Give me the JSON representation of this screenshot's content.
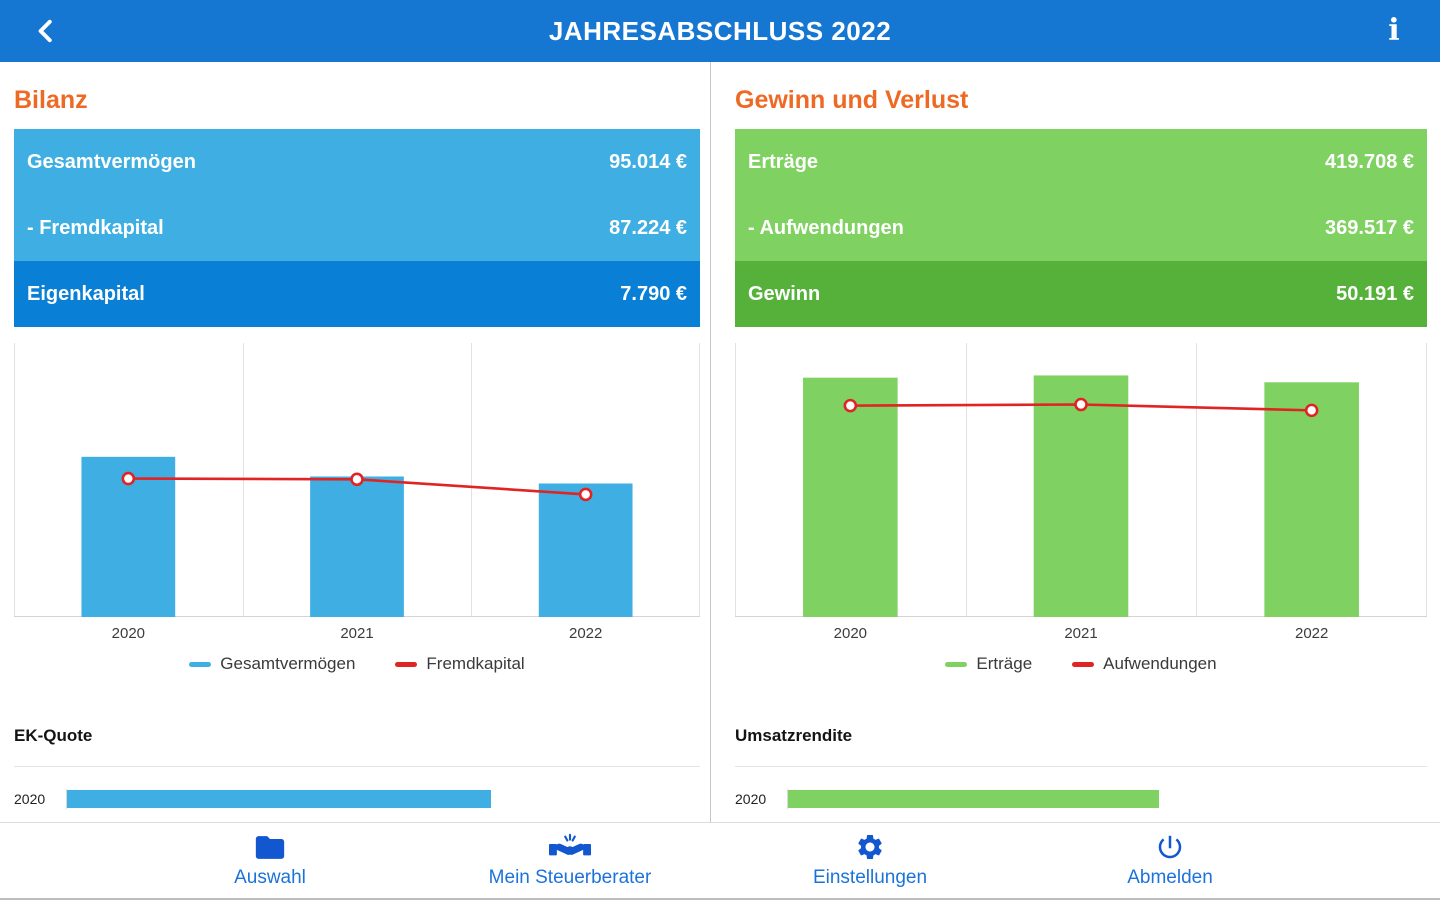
{
  "colors": {
    "topbar": "#1677d2",
    "heading_orange": "#ee6a24",
    "row_light_blue": "#3fafe3",
    "row_dark_blue": "#0a7fd6",
    "row_light_green": "#7fd162",
    "row_dark_green": "#55b13a",
    "line_red": "#e02424",
    "nav_blue": "#1257cf",
    "nav_label_blue": "#1b73da"
  },
  "topbar": {
    "title": "JAHRESABSCHLUSS 2022",
    "info_icon": "i"
  },
  "left": {
    "title": "Bilanz",
    "rows": [
      {
        "label": "Gesamtvermögen",
        "value": "95.014 €"
      },
      {
        "label": "- Fremdkapital",
        "value": "87.224 €"
      },
      {
        "label": "Eigenkapital",
        "value": "7.790 €"
      }
    ],
    "sub_title": "EK-Quote"
  },
  "right": {
    "title": "Gewinn und Verlust",
    "rows": [
      {
        "label": "Erträge",
        "value": "419.708 €"
      },
      {
        "label": "- Aufwendungen",
        "value": "369.517 €"
      },
      {
        "label": "Gewinn",
        "value": "50.191 €"
      }
    ],
    "sub_title": "Umsatzrendite"
  },
  "chart_data": [
    {
      "id": "bilanz-chart",
      "type": "bar",
      "title": "Bilanz",
      "categories": [
        "2020",
        "2021",
        "2022"
      ],
      "series": [
        {
          "name": "Gesamtvermögen",
          "kind": "bar",
          "color": "#3fafe3",
          "values": [
            114000,
            100000,
            95014
          ]
        },
        {
          "name": "Fremdkapital",
          "kind": "line",
          "color": "#e02424",
          "values": [
            98500,
            98000,
            87224
          ]
        }
      ],
      "ylim": [
        0,
        195000
      ],
      "grid": true,
      "legend_position": "bottom"
    },
    {
      "id": "guv-chart",
      "type": "bar",
      "title": "Gewinn und Verlust",
      "categories": [
        "2020",
        "2021",
        "2022"
      ],
      "series": [
        {
          "name": "Erträge",
          "kind": "bar",
          "color": "#7fd162",
          "values": [
            428000,
            432000,
            419708
          ]
        },
        {
          "name": "Aufwendungen",
          "kind": "line",
          "color": "#e02424",
          "values": [
            378000,
            380000,
            369517
          ]
        }
      ],
      "ylim": [
        0,
        490000
      ],
      "grid": true,
      "legend_position": "bottom"
    },
    {
      "id": "ek-quote-chart",
      "type": "bar",
      "orientation": "horizontal",
      "title": "EK-Quote",
      "categories": [
        "2020"
      ],
      "values": [
        67
      ],
      "xlim": [
        0,
        100
      ],
      "color": "#3fafe3"
    },
    {
      "id": "umsatzrendite-chart",
      "type": "bar",
      "orientation": "horizontal",
      "title": "Umsatzrendite",
      "categories": [
        "2020"
      ],
      "values": [
        58
      ],
      "xlim": [
        0,
        100
      ],
      "color": "#7fd162"
    }
  ],
  "bottom_nav": [
    {
      "label": "Auswahl",
      "icon": "folder-icon"
    },
    {
      "label": "Mein Steuerberater",
      "icon": "handshake-icon"
    },
    {
      "label": "Einstellungen",
      "icon": "gear-icon"
    },
    {
      "label": "Abmelden",
      "icon": "power-icon"
    }
  ]
}
